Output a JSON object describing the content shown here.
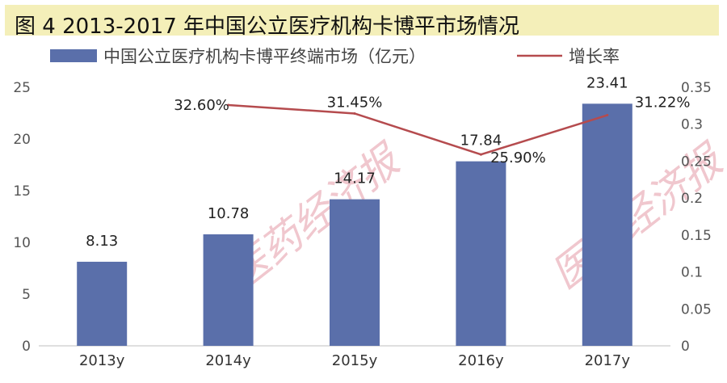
{
  "title": "图 4   2013-2017 年中国公立医疗机构卡博平市场情况",
  "watermark": "医药经济报",
  "chart_data": {
    "type": "bar",
    "categories": [
      "2013y",
      "2014y",
      "2015y",
      "2016y",
      "2017y"
    ],
    "series": [
      {
        "name": "中国公立医疗机构卡博平终端市场（亿元）",
        "type": "bar",
        "axis": "left",
        "color": "#5a6faa",
        "values": [
          8.13,
          10.78,
          14.17,
          17.84,
          23.41
        ],
        "labels": [
          "8.13",
          "10.78",
          "14.17",
          "17.84",
          "23.41"
        ]
      },
      {
        "name": "增长率",
        "type": "line",
        "axis": "right",
        "color": "#b54b4e",
        "values": [
          null,
          0.326,
          0.3145,
          0.259,
          0.3122
        ],
        "labels": [
          "",
          "32.60%",
          "31.45%",
          "25.90%",
          "31.22%"
        ]
      }
    ],
    "y_left": {
      "range": [
        0,
        25
      ],
      "ticks": [
        "0",
        "5",
        "10",
        "15",
        "20",
        "25"
      ]
    },
    "y_right": {
      "range": [
        0,
        0.35
      ],
      "ticks": [
        "0",
        "0.05",
        "0.1",
        "0.15",
        "0.2",
        "0.25",
        "0.3",
        "0.35"
      ]
    },
    "legend_position": "top",
    "grid": false
  }
}
